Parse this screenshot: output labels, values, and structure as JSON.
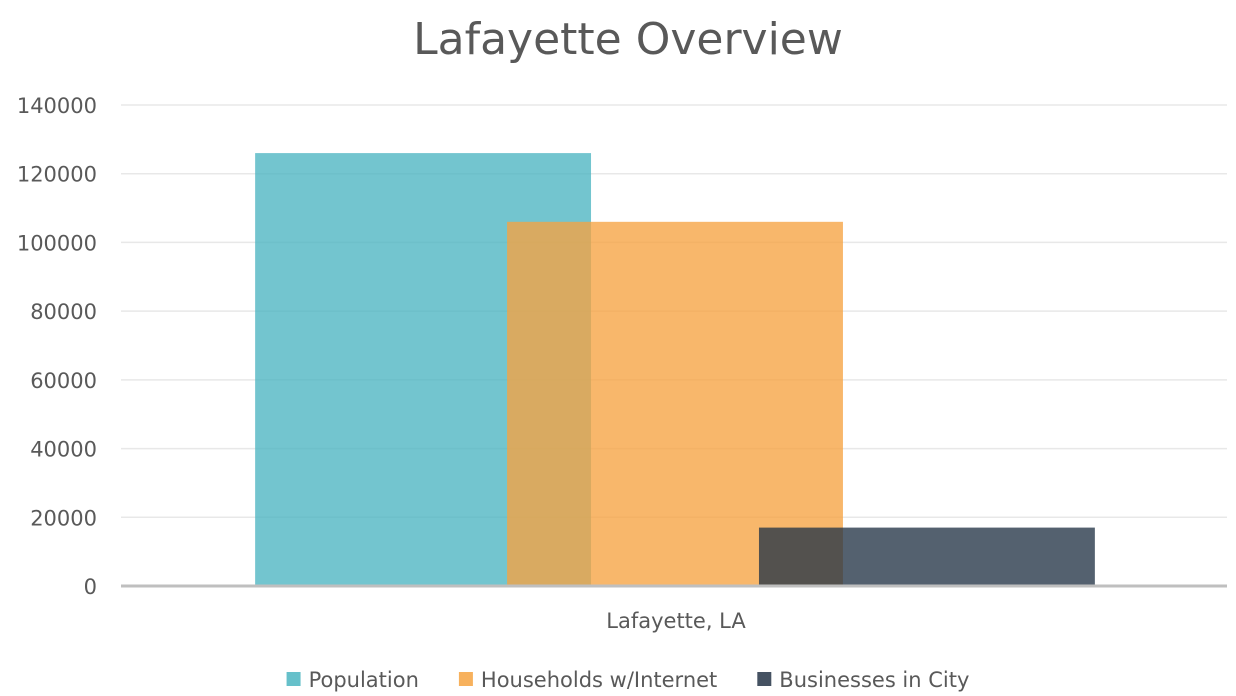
{
  "chart_data": {
    "type": "bar",
    "title": "Lafayette Overview",
    "categories": [
      "Lafayette, LA"
    ],
    "series": [
      {
        "name": "Population",
        "values": [
          126000
        ],
        "color": "#4BB5C1"
      },
      {
        "name": "Households w/Internet",
        "values": [
          106000
        ],
        "color": "#F6A341"
      },
      {
        "name": "Businesses in City",
        "values": [
          17000
        ],
        "color": "#243447"
      }
    ],
    "ylim": [
      0,
      140000
    ],
    "yticks": [
      "0",
      "20000",
      "40000",
      "60000",
      "80000",
      "100000",
      "120000",
      "140000"
    ],
    "grid": true,
    "legend": "bottom",
    "bars_overlap": true,
    "bar_opacity": 0.78
  }
}
